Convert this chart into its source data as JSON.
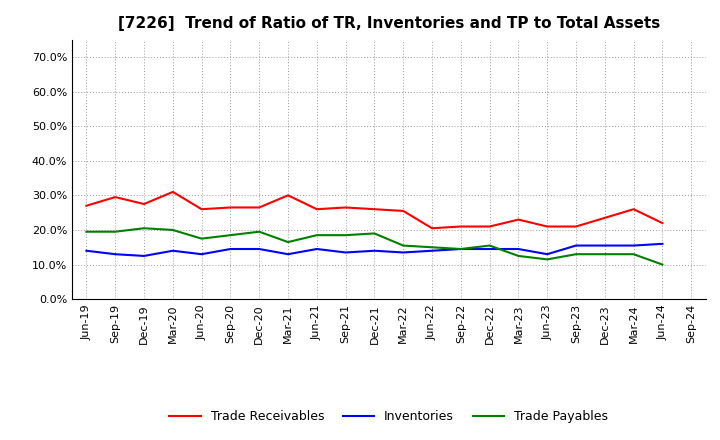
{
  "title": "[7226]  Trend of Ratio of TR, Inventories and TP to Total Assets",
  "x_labels": [
    "Jun-19",
    "Sep-19",
    "Dec-19",
    "Mar-20",
    "Jun-20",
    "Sep-20",
    "Dec-20",
    "Mar-21",
    "Jun-21",
    "Sep-21",
    "Dec-21",
    "Mar-22",
    "Jun-22",
    "Sep-22",
    "Dec-22",
    "Mar-23",
    "Jun-23",
    "Sep-23",
    "Dec-23",
    "Mar-24",
    "Jun-24",
    "Sep-24"
  ],
  "trade_receivables": [
    0.27,
    0.295,
    0.275,
    0.31,
    0.26,
    0.265,
    0.265,
    0.3,
    0.26,
    0.265,
    0.26,
    0.255,
    0.205,
    0.21,
    0.21,
    0.23,
    0.21,
    0.21,
    0.235,
    0.26,
    0.22,
    null
  ],
  "inventories": [
    0.14,
    0.13,
    0.125,
    0.14,
    0.13,
    0.145,
    0.145,
    0.13,
    0.145,
    0.135,
    0.14,
    0.135,
    0.14,
    0.145,
    0.145,
    0.145,
    0.13,
    0.155,
    0.155,
    0.155,
    0.16,
    null
  ],
  "trade_payables": [
    0.195,
    0.195,
    0.205,
    0.2,
    0.175,
    0.185,
    0.195,
    0.165,
    0.185,
    0.185,
    0.19,
    0.155,
    0.15,
    0.145,
    0.155,
    0.125,
    0.115,
    0.13,
    0.13,
    0.13,
    0.1,
    null
  ],
  "tr_color": "#ff0000",
  "inv_color": "#0000ff",
  "tp_color": "#008000",
  "ylim": [
    0.0,
    0.75
  ],
  "yticks": [
    0.0,
    0.1,
    0.2,
    0.3,
    0.4,
    0.5,
    0.6,
    0.7
  ],
  "background_color": "#ffffff",
  "grid_color": "#999999",
  "legend_labels": [
    "Trade Receivables",
    "Inventories",
    "Trade Payables"
  ],
  "title_fontsize": 11,
  "tick_fontsize": 8,
  "legend_fontsize": 9
}
